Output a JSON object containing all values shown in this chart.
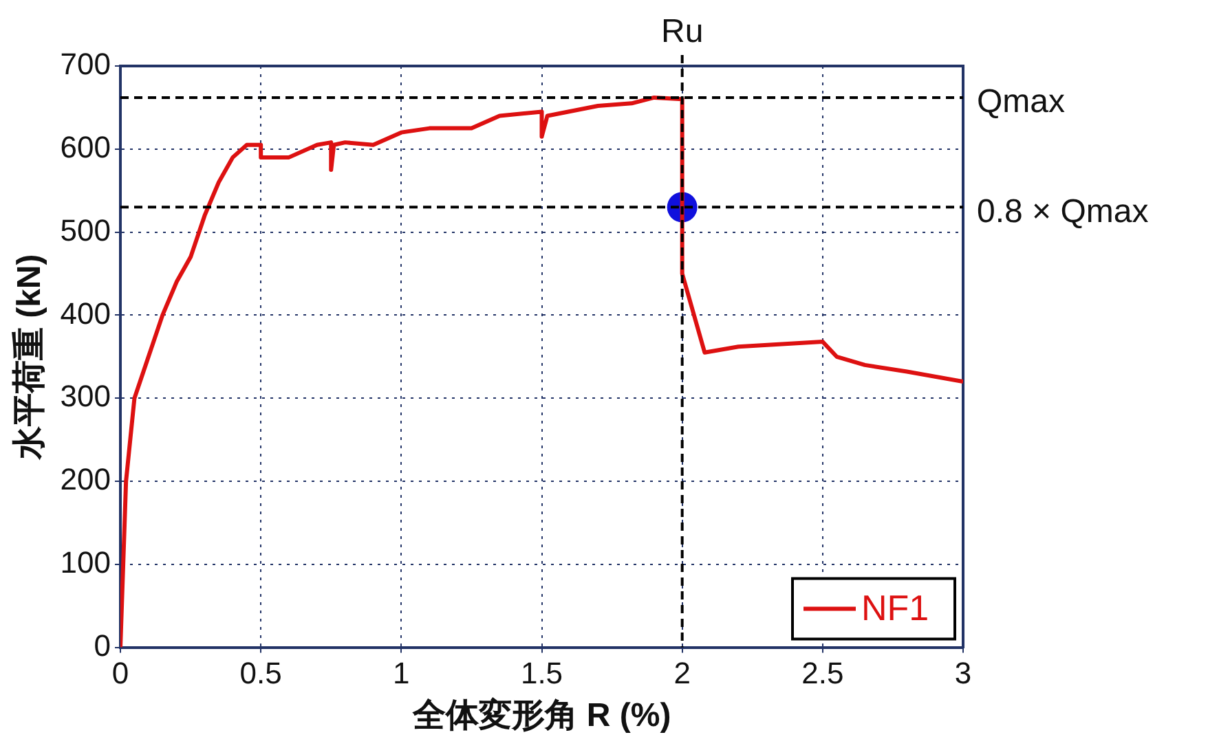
{
  "chart_data": {
    "type": "line",
    "xlabel": "全体変形角 R (%)",
    "ylabel": "水平荷重 (kN)",
    "xlim": [
      0,
      3
    ],
    "xticks": [
      0,
      0.5,
      1,
      1.5,
      2,
      2.5,
      3
    ],
    "ylim": [
      0,
      700
    ],
    "yticks": [
      0,
      100,
      200,
      300,
      400,
      500,
      600,
      700
    ],
    "grid": true,
    "legend": "bottom right",
    "line_style": "solid",
    "series": [
      {
        "name": "NF1",
        "color": "#dd1111",
        "x": [
          0,
          0.01,
          0.02,
          0.05,
          0.1,
          0.15,
          0.2,
          0.25,
          0.3,
          0.35,
          0.4,
          0.45,
          0.5,
          0.5,
          0.6,
          0.7,
          0.75,
          0.75,
          0.76,
          0.8,
          0.9,
          1.0,
          1.1,
          1.25,
          1.35,
          1.5,
          1.5,
          1.52,
          1.7,
          1.82,
          1.9,
          2.0,
          2.0,
          2.08,
          2.2,
          2.5,
          2.55,
          2.65,
          2.8,
          3.0
        ],
        "values": [
          0,
          100,
          200,
          300,
          350,
          400,
          440,
          470,
          520,
          560,
          590,
          605,
          605,
          590,
          590,
          605,
          608,
          575,
          605,
          608,
          605,
          620,
          625,
          625,
          640,
          645,
          615,
          640,
          652,
          655,
          662,
          660,
          450,
          355,
          362,
          368,
          350,
          340,
          332,
          320
        ]
      },
      {
        "type": "scatter",
        "color": "#1010dd",
        "marker": "circle",
        "x": [
          2.0
        ],
        "values": [
          530
        ]
      }
    ],
    "ref_lines": [
      {
        "axis": "y",
        "value": 662,
        "label": "Qmax",
        "line_style": "dashed",
        "color": "#000000"
      },
      {
        "axis": "y",
        "value": 530,
        "label": "0.8 × Qmax",
        "line_style": "dashed",
        "color": "#000000"
      },
      {
        "axis": "x",
        "value": 2,
        "label": "Ru",
        "line_style": "dashed",
        "color": "#000000"
      }
    ]
  }
}
